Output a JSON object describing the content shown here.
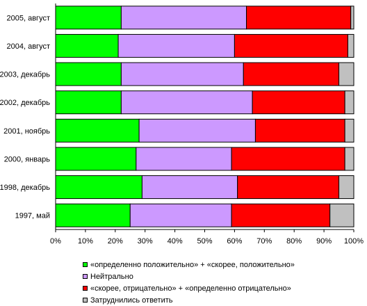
{
  "chart_data": {
    "type": "bar",
    "orientation": "horizontal",
    "stacked": "percent",
    "categories": [
      "2005, август",
      "2004, август",
      "2003, декабрь",
      "2002, декабрь",
      "2001, ноябрь",
      "2000, январь",
      "1998, декабрь",
      "1997, май"
    ],
    "series": [
      {
        "name": "«определенно положительно» + «скорее, положительно»",
        "color": "#00ff00",
        "values": [
          22,
          21,
          22,
          22,
          28,
          27,
          29,
          25
        ]
      },
      {
        "name": "Нейтрально",
        "color": "#cc99ff",
        "values": [
          42,
          39,
          41,
          44,
          39,
          32,
          32,
          34
        ]
      },
      {
        "name": "«скорее, отрицательно» + «определенно отрицательно»",
        "color": "#ff0000",
        "values": [
          35,
          38,
          32,
          31,
          30,
          38,
          34,
          33
        ]
      },
      {
        "name": "Затруднились ответить",
        "color": "#c0c0c0",
        "values": [
          1,
          2,
          5,
          3,
          3,
          3,
          5,
          8
        ]
      }
    ],
    "xlim": [
      0,
      100
    ],
    "x_ticks": [
      "0%",
      "10%",
      "20%",
      "30%",
      "40%",
      "50%",
      "60%",
      "70%",
      "80%",
      "90%",
      "100%"
    ],
    "grid": false,
    "legend_position": "bottom"
  }
}
